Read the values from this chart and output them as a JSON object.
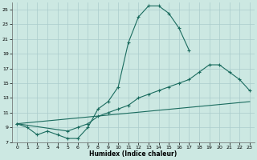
{
  "xlabel": "Humidex (Indice chaleur)",
  "bg_color": "#cce8e2",
  "grid_color": "#aacccc",
  "line_color": "#1a6b5e",
  "xlim": [
    -0.5,
    23.5
  ],
  "ylim": [
    7,
    26
  ],
  "xticks": [
    0,
    1,
    2,
    3,
    4,
    5,
    6,
    7,
    8,
    9,
    10,
    11,
    12,
    13,
    14,
    15,
    16,
    17,
    18,
    19,
    20,
    21,
    22,
    23
  ],
  "yticks": [
    7,
    9,
    11,
    13,
    15,
    17,
    19,
    21,
    23,
    25
  ],
  "curve1_x": [
    0,
    1,
    2,
    3,
    4,
    5,
    6,
    7,
    8,
    9,
    10,
    11,
    12,
    13,
    14,
    15,
    16,
    17
  ],
  "curve1_y": [
    9.5,
    9.0,
    8.0,
    8.5,
    8.0,
    7.5,
    7.5,
    9.0,
    11.5,
    12.5,
    14.5,
    20.5,
    24.0,
    25.5,
    25.5,
    24.5,
    22.5,
    19.5
  ],
  "curve2_x": [
    0,
    5,
    6,
    7,
    8,
    9,
    10,
    11,
    12,
    13,
    14,
    15,
    16,
    17,
    18,
    19,
    20,
    21,
    22,
    23
  ],
  "curve2_y": [
    9.5,
    8.5,
    9.0,
    9.5,
    10.5,
    11.0,
    11.5,
    12.0,
    13.0,
    13.5,
    14.0,
    14.5,
    15.0,
    15.5,
    16.5,
    17.5,
    17.5,
    16.5,
    15.5,
    14.0
  ],
  "curve3_x": [
    0,
    23
  ],
  "curve3_y": [
    9.5,
    12.5
  ]
}
